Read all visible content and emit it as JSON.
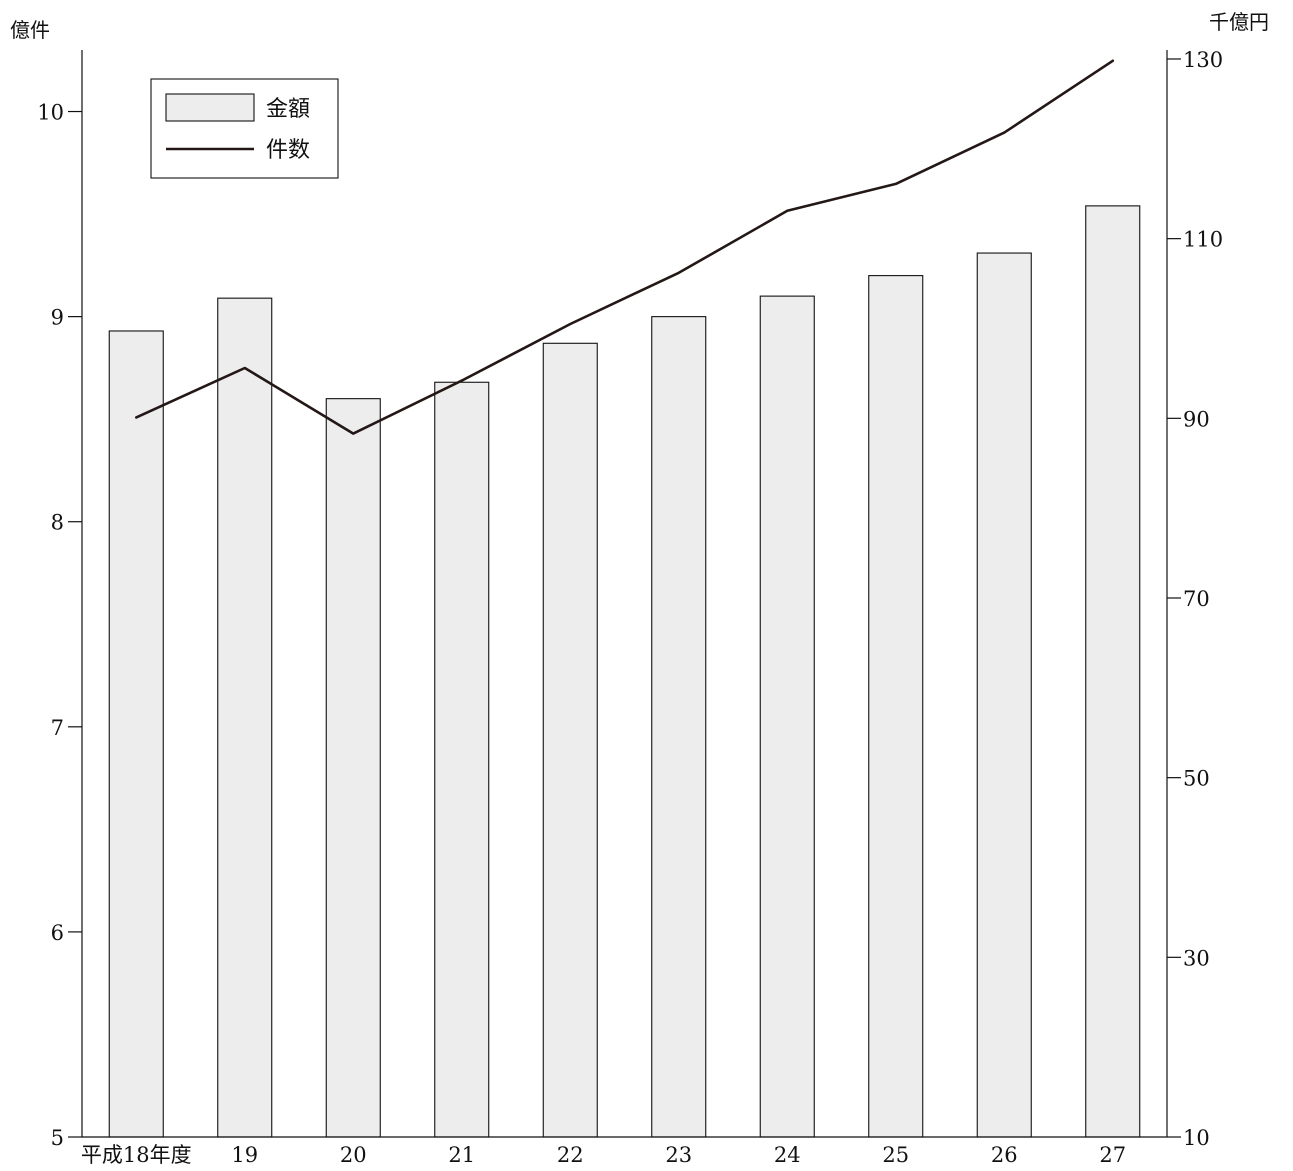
{
  "chart_data": {
    "type": "bar",
    "categories": [
      "平成18年度",
      "19",
      "20",
      "21",
      "22",
      "23",
      "24",
      "25",
      "26",
      "27"
    ],
    "series": [
      {
        "name": "金額",
        "type": "bar",
        "axis": "left",
        "values": [
          8.93,
          9.09,
          8.6,
          8.68,
          8.87,
          9.0,
          9.1,
          9.2,
          9.31,
          9.54
        ]
      },
      {
        "name": "件数",
        "type": "line",
        "axis": "right",
        "values": [
          90.1,
          95.6,
          88.3,
          94.2,
          100.5,
          106.2,
          113.1,
          116.1,
          121.8,
          129.8
        ]
      }
    ],
    "y_left": {
      "unit": "億件",
      "ylim": [
        5,
        10.3
      ],
      "ticks": [
        5,
        6,
        7,
        8,
        9,
        10
      ]
    },
    "y_right": {
      "unit": "千億円",
      "ylim": [
        10,
        131
      ],
      "ticks": [
        10,
        30,
        50,
        70,
        90,
        110,
        130
      ]
    },
    "legend_position": "top-left",
    "grid": false,
    "colors": {
      "bar_fill": "#ededed",
      "line": "#231815",
      "axis": "#111111"
    }
  }
}
